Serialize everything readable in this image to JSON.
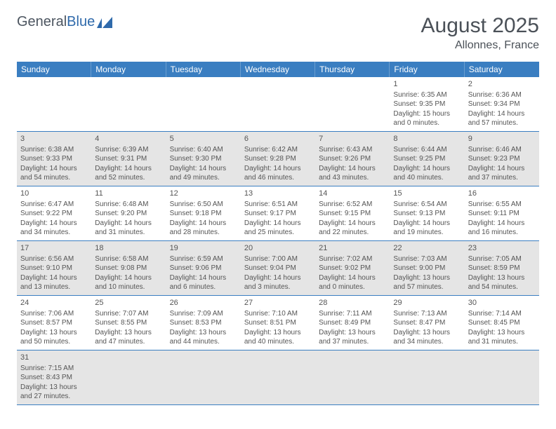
{
  "logo": {
    "word1": "General",
    "word2": "Blue"
  },
  "title": "August 2025",
  "location": "Allonnes, France",
  "colors": {
    "header_bg": "#3a7ec1",
    "header_text": "#ffffff",
    "border": "#3a7ec1",
    "shaded_bg": "#e5e5e5",
    "text": "#555555",
    "title_text": "#4b5158"
  },
  "weekdays": [
    "Sunday",
    "Monday",
    "Tuesday",
    "Wednesday",
    "Thursday",
    "Friday",
    "Saturday"
  ],
  "weeks": [
    [
      null,
      null,
      null,
      null,
      null,
      {
        "n": "1",
        "sr": "Sunrise: 6:35 AM",
        "ss": "Sunset: 9:35 PM",
        "dl": "Daylight: 15 hours and 0 minutes."
      },
      {
        "n": "2",
        "sr": "Sunrise: 6:36 AM",
        "ss": "Sunset: 9:34 PM",
        "dl": "Daylight: 14 hours and 57 minutes."
      }
    ],
    [
      {
        "n": "3",
        "sr": "Sunrise: 6:38 AM",
        "ss": "Sunset: 9:33 PM",
        "dl": "Daylight: 14 hours and 54 minutes."
      },
      {
        "n": "4",
        "sr": "Sunrise: 6:39 AM",
        "ss": "Sunset: 9:31 PM",
        "dl": "Daylight: 14 hours and 52 minutes."
      },
      {
        "n": "5",
        "sr": "Sunrise: 6:40 AM",
        "ss": "Sunset: 9:30 PM",
        "dl": "Daylight: 14 hours and 49 minutes."
      },
      {
        "n": "6",
        "sr": "Sunrise: 6:42 AM",
        "ss": "Sunset: 9:28 PM",
        "dl": "Daylight: 14 hours and 46 minutes."
      },
      {
        "n": "7",
        "sr": "Sunrise: 6:43 AM",
        "ss": "Sunset: 9:26 PM",
        "dl": "Daylight: 14 hours and 43 minutes."
      },
      {
        "n": "8",
        "sr": "Sunrise: 6:44 AM",
        "ss": "Sunset: 9:25 PM",
        "dl": "Daylight: 14 hours and 40 minutes."
      },
      {
        "n": "9",
        "sr": "Sunrise: 6:46 AM",
        "ss": "Sunset: 9:23 PM",
        "dl": "Daylight: 14 hours and 37 minutes."
      }
    ],
    [
      {
        "n": "10",
        "sr": "Sunrise: 6:47 AM",
        "ss": "Sunset: 9:22 PM",
        "dl": "Daylight: 14 hours and 34 minutes."
      },
      {
        "n": "11",
        "sr": "Sunrise: 6:48 AM",
        "ss": "Sunset: 9:20 PM",
        "dl": "Daylight: 14 hours and 31 minutes."
      },
      {
        "n": "12",
        "sr": "Sunrise: 6:50 AM",
        "ss": "Sunset: 9:18 PM",
        "dl": "Daylight: 14 hours and 28 minutes."
      },
      {
        "n": "13",
        "sr": "Sunrise: 6:51 AM",
        "ss": "Sunset: 9:17 PM",
        "dl": "Daylight: 14 hours and 25 minutes."
      },
      {
        "n": "14",
        "sr": "Sunrise: 6:52 AM",
        "ss": "Sunset: 9:15 PM",
        "dl": "Daylight: 14 hours and 22 minutes."
      },
      {
        "n": "15",
        "sr": "Sunrise: 6:54 AM",
        "ss": "Sunset: 9:13 PM",
        "dl": "Daylight: 14 hours and 19 minutes."
      },
      {
        "n": "16",
        "sr": "Sunrise: 6:55 AM",
        "ss": "Sunset: 9:11 PM",
        "dl": "Daylight: 14 hours and 16 minutes."
      }
    ],
    [
      {
        "n": "17",
        "sr": "Sunrise: 6:56 AM",
        "ss": "Sunset: 9:10 PM",
        "dl": "Daylight: 14 hours and 13 minutes."
      },
      {
        "n": "18",
        "sr": "Sunrise: 6:58 AM",
        "ss": "Sunset: 9:08 PM",
        "dl": "Daylight: 14 hours and 10 minutes."
      },
      {
        "n": "19",
        "sr": "Sunrise: 6:59 AM",
        "ss": "Sunset: 9:06 PM",
        "dl": "Daylight: 14 hours and 6 minutes."
      },
      {
        "n": "20",
        "sr": "Sunrise: 7:00 AM",
        "ss": "Sunset: 9:04 PM",
        "dl": "Daylight: 14 hours and 3 minutes."
      },
      {
        "n": "21",
        "sr": "Sunrise: 7:02 AM",
        "ss": "Sunset: 9:02 PM",
        "dl": "Daylight: 14 hours and 0 minutes."
      },
      {
        "n": "22",
        "sr": "Sunrise: 7:03 AM",
        "ss": "Sunset: 9:00 PM",
        "dl": "Daylight: 13 hours and 57 minutes."
      },
      {
        "n": "23",
        "sr": "Sunrise: 7:05 AM",
        "ss": "Sunset: 8:59 PM",
        "dl": "Daylight: 13 hours and 54 minutes."
      }
    ],
    [
      {
        "n": "24",
        "sr": "Sunrise: 7:06 AM",
        "ss": "Sunset: 8:57 PM",
        "dl": "Daylight: 13 hours and 50 minutes."
      },
      {
        "n": "25",
        "sr": "Sunrise: 7:07 AM",
        "ss": "Sunset: 8:55 PM",
        "dl": "Daylight: 13 hours and 47 minutes."
      },
      {
        "n": "26",
        "sr": "Sunrise: 7:09 AM",
        "ss": "Sunset: 8:53 PM",
        "dl": "Daylight: 13 hours and 44 minutes."
      },
      {
        "n": "27",
        "sr": "Sunrise: 7:10 AM",
        "ss": "Sunset: 8:51 PM",
        "dl": "Daylight: 13 hours and 40 minutes."
      },
      {
        "n": "28",
        "sr": "Sunrise: 7:11 AM",
        "ss": "Sunset: 8:49 PM",
        "dl": "Daylight: 13 hours and 37 minutes."
      },
      {
        "n": "29",
        "sr": "Sunrise: 7:13 AM",
        "ss": "Sunset: 8:47 PM",
        "dl": "Daylight: 13 hours and 34 minutes."
      },
      {
        "n": "30",
        "sr": "Sunrise: 7:14 AM",
        "ss": "Sunset: 8:45 PM",
        "dl": "Daylight: 13 hours and 31 minutes."
      }
    ],
    [
      {
        "n": "31",
        "sr": "Sunrise: 7:15 AM",
        "ss": "Sunset: 8:43 PM",
        "dl": "Daylight: 13 hours and 27 minutes."
      },
      null,
      null,
      null,
      null,
      null,
      null
    ]
  ]
}
